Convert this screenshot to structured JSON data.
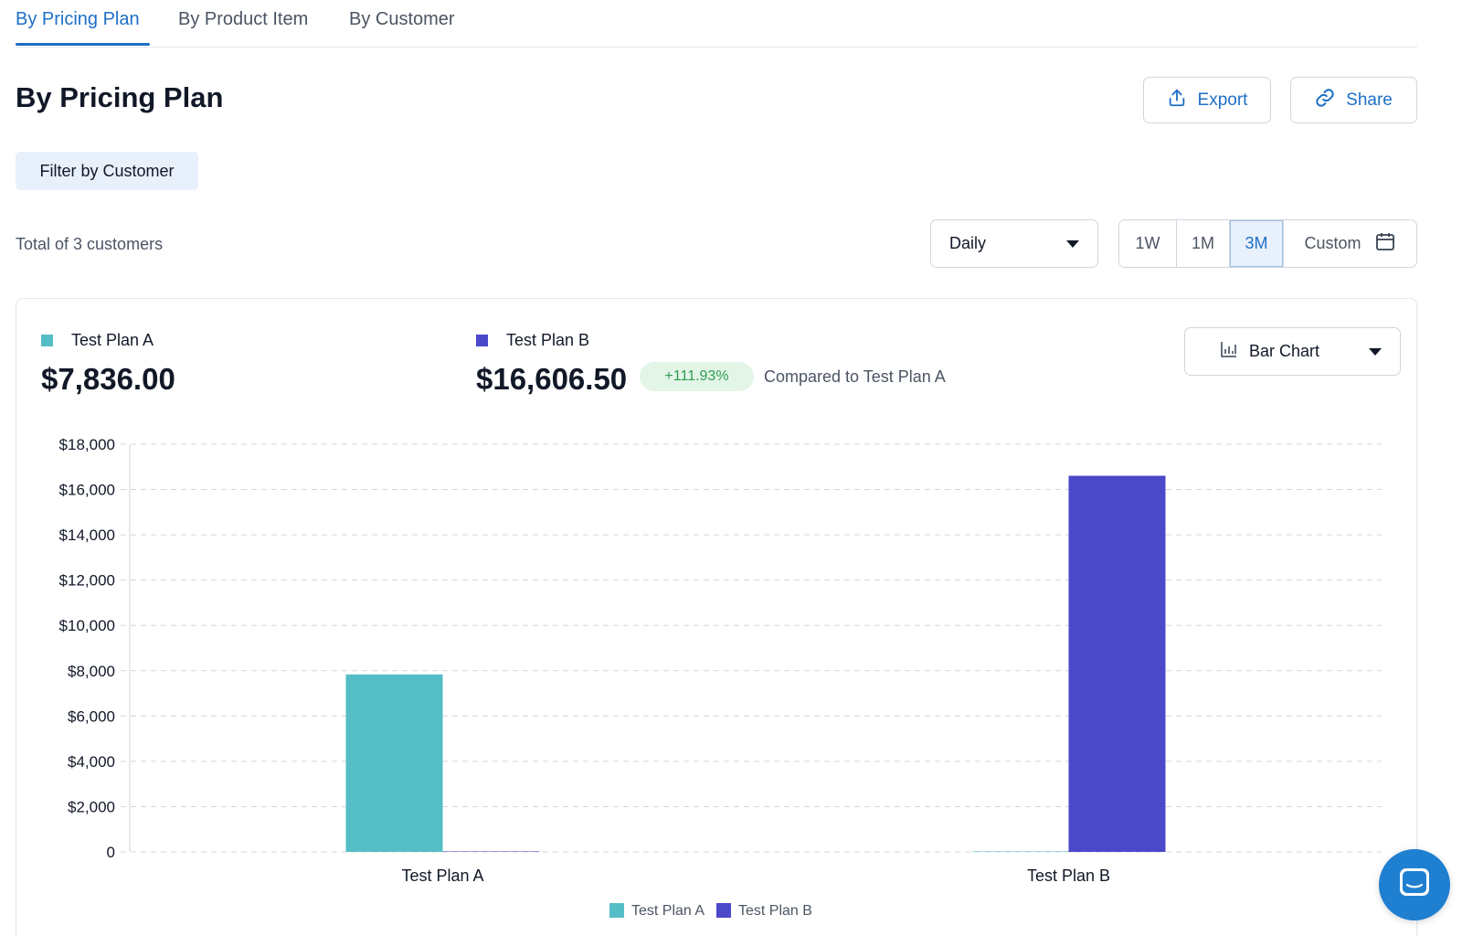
{
  "tabs": [
    {
      "label": "By Pricing Plan",
      "active": true
    },
    {
      "label": "By Product Item",
      "active": false
    },
    {
      "label": "By Customer",
      "active": false
    }
  ],
  "header": {
    "title": "By Pricing Plan",
    "export_label": "Export",
    "share_label": "Share"
  },
  "filter": {
    "label": "Filter by Customer"
  },
  "summary": {
    "total_text": "Total of 3 customers"
  },
  "controls": {
    "interval": "Daily",
    "ranges": [
      {
        "label": "1W",
        "active": false
      },
      {
        "label": "1M",
        "active": false
      },
      {
        "label": "3M",
        "active": true
      },
      {
        "label": "Custom",
        "active": false
      }
    ],
    "chart_type": "Bar Chart"
  },
  "kpis": {
    "plan_a": {
      "name": "Test Plan A",
      "value": "$7,836.00",
      "color": "#55bdc6"
    },
    "plan_b": {
      "name": "Test Plan B",
      "value": "$16,606.50",
      "color": "#4b48c9"
    },
    "delta": "+111.93%",
    "compare_text": "Compared to Test Plan A"
  },
  "colors": {
    "accent": "#1f6fc5",
    "positive": "#2f9e52",
    "chat_button": "#1f7fd1"
  },
  "icons": {
    "export": "upload-icon",
    "share": "link-icon",
    "interval_dropdown": "chevron-down-icon",
    "calendar": "calendar-icon",
    "chart_type": "bar-chart-icon",
    "chat": "chat-icon"
  },
  "chart_data": {
    "type": "bar",
    "categories": [
      "Test Plan A",
      "Test Plan B"
    ],
    "series": [
      {
        "name": "Test Plan A",
        "values": [
          7836,
          0
        ],
        "color": "#55bdc6"
      },
      {
        "name": "Test Plan B",
        "values": [
          0,
          16606.5
        ],
        "color": "#4b48c9"
      }
    ],
    "ylim": [
      0,
      18000
    ],
    "yticks": [
      0,
      2000,
      4000,
      6000,
      8000,
      10000,
      12000,
      14000,
      16000,
      18000
    ],
    "ytick_labels": [
      "0",
      "$2,000",
      "$4,000",
      "$6,000",
      "$8,000",
      "$10,000",
      "$12,000",
      "$14,000",
      "$16,000",
      "$18,000"
    ],
    "grid": true,
    "legend": "bottom-center",
    "title": "",
    "xlabel": "",
    "ylabel": ""
  }
}
